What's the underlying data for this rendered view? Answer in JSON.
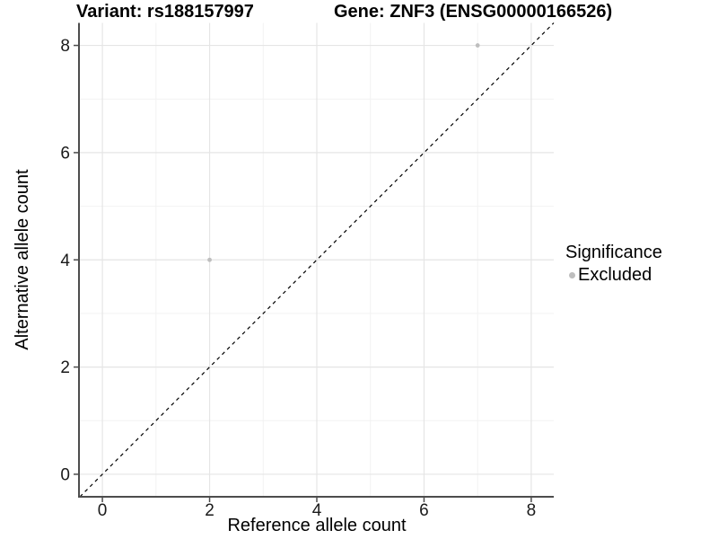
{
  "chart_data": {
    "type": "scatter",
    "title_left": "Variant: rs188157997",
    "title_right": "Gene: ZNF3 (ENSG00000166526)",
    "xlabel": "Reference allele count",
    "ylabel": "Alternative allele count",
    "xlim": [
      -0.42,
      8.42
    ],
    "ylim": [
      -0.42,
      8.42
    ],
    "x_major_ticks": [
      0,
      2,
      4,
      6,
      8
    ],
    "y_major_ticks": [
      0,
      2,
      4,
      6,
      8
    ],
    "x_minor_ticks": [
      1,
      3,
      5,
      7
    ],
    "y_minor_ticks": [
      1,
      3,
      5,
      7
    ],
    "grid": true,
    "series": [
      {
        "name": "Excluded",
        "color": "#bebebe",
        "points": [
          {
            "x": 2,
            "y": 4
          },
          {
            "x": 7,
            "y": 8
          }
        ]
      }
    ],
    "identity_line": {
      "style": "dashed",
      "color": "#000000",
      "from": [
        -0.42,
        -0.42
      ],
      "to": [
        8.42,
        8.42
      ]
    },
    "legend": {
      "title": "Significance",
      "position": "right",
      "entries": [
        {
          "label": "Excluded",
          "color": "#bebebe"
        }
      ]
    },
    "colors": {
      "major_grid": "#e5e5e5",
      "minor_grid": "#f2f2f2",
      "axis_line": "#4d4d4d",
      "tick_label": "#1a1a1a"
    }
  }
}
